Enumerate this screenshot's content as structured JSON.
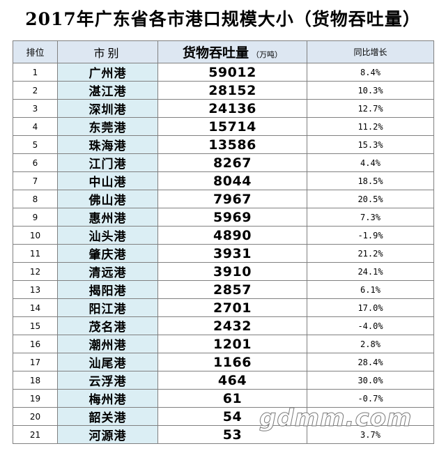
{
  "title": "2017年广东省各市港口规模大小（货物吞吐量）",
  "headers": {
    "rank": "排位",
    "city": "市别",
    "volume": "货物吞吐量",
    "volume_unit": "（万吨）",
    "growth": "同比增长"
  },
  "rows": [
    {
      "rank": "1",
      "city": "广州港",
      "volume": "59012",
      "growth": "8.4%"
    },
    {
      "rank": "2",
      "city": "湛江港",
      "volume": "28152",
      "growth": "10.3%"
    },
    {
      "rank": "3",
      "city": "深圳港",
      "volume": "24136",
      "growth": "12.7%"
    },
    {
      "rank": "4",
      "city": "东莞港",
      "volume": "15714",
      "growth": "11.2%"
    },
    {
      "rank": "5",
      "city": "珠海港",
      "volume": "13586",
      "growth": "15.3%"
    },
    {
      "rank": "6",
      "city": "江门港",
      "volume": "8267",
      "growth": "4.4%"
    },
    {
      "rank": "7",
      "city": "中山港",
      "volume": "8044",
      "growth": "18.5%"
    },
    {
      "rank": "8",
      "city": "佛山港",
      "volume": "7967",
      "growth": "20.5%"
    },
    {
      "rank": "9",
      "city": "惠州港",
      "volume": "5969",
      "growth": "7.3%"
    },
    {
      "rank": "10",
      "city": "汕头港",
      "volume": "4890",
      "growth": "-1.9%"
    },
    {
      "rank": "11",
      "city": "肇庆港",
      "volume": "3931",
      "growth": "21.2%"
    },
    {
      "rank": "12",
      "city": "清远港",
      "volume": "3910",
      "growth": "24.1%"
    },
    {
      "rank": "13",
      "city": "揭阳港",
      "volume": "2857",
      "growth": "6.1%"
    },
    {
      "rank": "14",
      "city": "阳江港",
      "volume": "2701",
      "growth": "17.0%"
    },
    {
      "rank": "15",
      "city": "茂名港",
      "volume": "2432",
      "growth": "-4.0%"
    },
    {
      "rank": "16",
      "city": "潮州港",
      "volume": "1201",
      "growth": "2.8%"
    },
    {
      "rank": "17",
      "city": "汕尾港",
      "volume": "1166",
      "growth": "28.4%"
    },
    {
      "rank": "18",
      "city": "云浮港",
      "volume": "464",
      "growth": "30.0%"
    },
    {
      "rank": "19",
      "city": "梅州港",
      "volume": "61",
      "growth": "-0.7%"
    },
    {
      "rank": "20",
      "city": "韶关港",
      "volume": "54",
      "growth": ""
    },
    {
      "rank": "21",
      "city": "河源港",
      "volume": "53",
      "growth": "3.7%"
    }
  ],
  "watermark": "gdmm.com"
}
